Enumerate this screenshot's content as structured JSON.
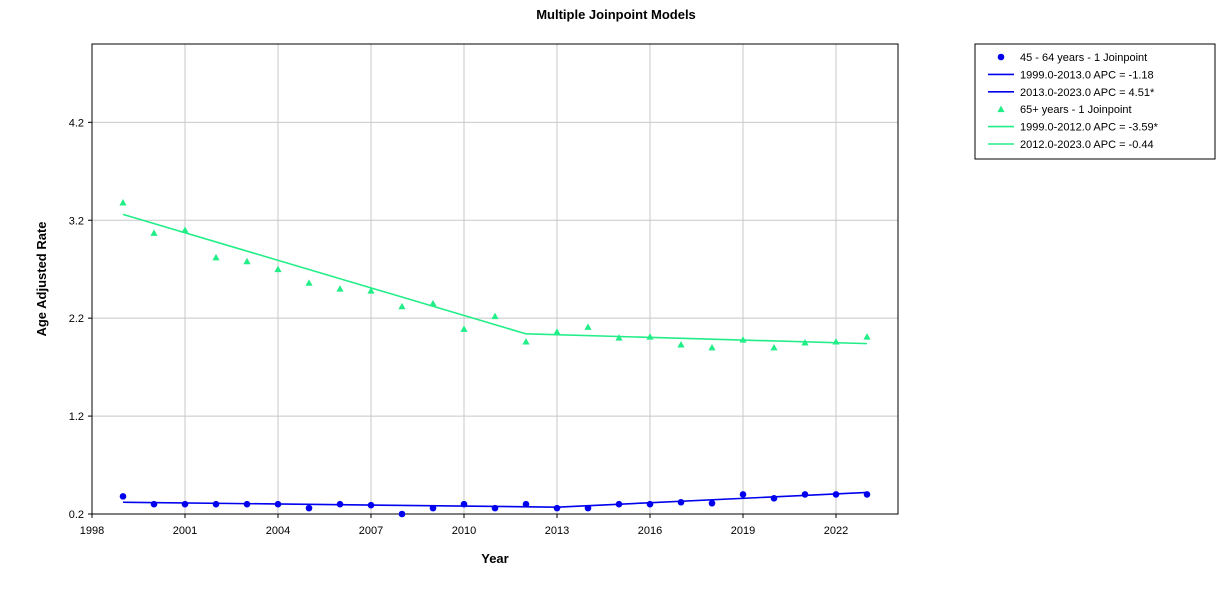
{
  "chart_data": {
    "type": "scatter",
    "title": "Multiple Joinpoint Models",
    "xlabel": "Year",
    "ylabel": "Age Adjusted Rate",
    "xlim": [
      1998,
      2024
    ],
    "ylim": [
      0.2,
      5.0
    ],
    "x_ticks": [
      1998,
      2001,
      2004,
      2007,
      2010,
      2013,
      2016,
      2019,
      2022
    ],
    "y_ticks": [
      0.2,
      1.2,
      2.2,
      3.2,
      4.2
    ],
    "y_tick_labels": [
      "0.2",
      "1.2",
      "2.2",
      "3.2",
      "4.2"
    ],
    "grid": true,
    "legend_position": "outside-right",
    "series": [
      {
        "name": "45 - 64 years - 1 Joinpoint",
        "color": "#0000ee",
        "marker": "circle",
        "x": [
          1999,
          2000,
          2001,
          2002,
          2003,
          2004,
          2005,
          2006,
          2007,
          2008,
          2009,
          2010,
          2011,
          2012,
          2013,
          2014,
          2015,
          2016,
          2017,
          2018,
          2019,
          2020,
          2021,
          2022,
          2023
        ],
        "values": [
          0.38,
          0.3,
          0.3,
          0.3,
          0.3,
          0.3,
          0.26,
          0.3,
          0.29,
          0.2,
          0.26,
          0.3,
          0.26,
          0.3,
          0.26,
          0.26,
          0.3,
          0.3,
          0.32,
          0.31,
          0.4,
          0.36,
          0.4,
          0.4,
          0.4
        ],
        "fits": [
          {
            "label": "1999.0-2013.0 APC  =  -1.18",
            "x": [
              1999,
              2013
            ],
            "values": [
              0.32,
              0.27
            ]
          },
          {
            "label": "2013.0-2023.0 APC  =  4.51*",
            "x": [
              2013,
              2023
            ],
            "values": [
              0.27,
              0.42
            ]
          }
        ]
      },
      {
        "name": "65+ years - 1 Joinpoint",
        "color": "#22ee88",
        "marker": "triangle",
        "x": [
          1999,
          2000,
          2001,
          2002,
          2003,
          2004,
          2005,
          2006,
          2007,
          2008,
          2009,
          2010,
          2011,
          2012,
          2013,
          2014,
          2015,
          2016,
          2017,
          2018,
          2019,
          2020,
          2021,
          2022,
          2023
        ],
        "values": [
          3.38,
          3.07,
          3.1,
          2.82,
          2.78,
          2.7,
          2.56,
          2.5,
          2.48,
          2.32,
          2.35,
          2.09,
          2.22,
          1.96,
          2.06,
          2.11,
          2.0,
          2.01,
          1.93,
          1.9,
          1.98,
          1.9,
          1.95,
          1.96,
          2.01
        ],
        "fits": [
          {
            "label": "1999.0-2012.0 APC  =  -3.59*",
            "x": [
              1999,
              2012
            ],
            "values": [
              3.26,
              2.04
            ]
          },
          {
            "label": "2012.0-2023.0 APC  =  -0.44",
            "x": [
              2012,
              2023
            ],
            "values": [
              2.04,
              1.94
            ]
          }
        ]
      }
    ]
  }
}
